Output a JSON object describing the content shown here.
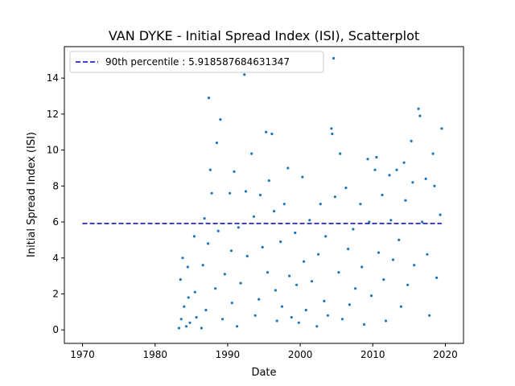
{
  "chart_data": {
    "type": "scatter",
    "title": "VAN DYKE - Initial Spread Index (ISI), Scatterplot",
    "xlabel": "Date",
    "ylabel": "Initial Spread Index (ISI)",
    "xlim": [
      1967.5,
      2022.5
    ],
    "ylim": [
      -0.75,
      15.75
    ],
    "xticks": [
      "1970",
      "1980",
      "1990",
      "2000",
      "2010",
      "2020"
    ],
    "xtick_values": [
      1970,
      1980,
      1990,
      2000,
      2010,
      2020
    ],
    "yticks": [
      "0",
      "2",
      "4",
      "6",
      "8",
      "10",
      "12",
      "14"
    ],
    "ytick_values": [
      0,
      2,
      4,
      6,
      8,
      10,
      12,
      14
    ],
    "grid": false,
    "legend": {
      "position": "top-left",
      "entries": [
        "90th percentile : 5.918587684631347"
      ]
    },
    "reference_line": {
      "name": "90th percentile : 5.918587684631347",
      "y": 5.918587684631347,
      "x_range": [
        1970,
        2019.5
      ],
      "color": "#0000cc",
      "style": "dashed"
    },
    "series": [
      {
        "name": "ISI",
        "color": "#1f77b4",
        "x": [
          1983.3,
          1983.5,
          1983.6,
          1983.8,
          1984.0,
          1984.3,
          1984.5,
          1984.6,
          1984.8,
          1985.4,
          1985.5,
          1985.7,
          1986.4,
          1986.6,
          1986.8,
          1987.0,
          1987.3,
          1987.4,
          1987.6,
          1987.8,
          1988.3,
          1988.5,
          1988.7,
          1989.0,
          1989.3,
          1989.6,
          1990.3,
          1990.5,
          1990.6,
          1990.9,
          1991.3,
          1991.5,
          1991.8,
          1992.3,
          1992.5,
          1992.7,
          1993.3,
          1993.6,
          1993.8,
          1994.3,
          1994.5,
          1994.8,
          1995.3,
          1995.5,
          1995.7,
          1996.1,
          1996.4,
          1996.6,
          1996.8,
          1997.3,
          1997.5,
          1997.8,
          1998.3,
          1998.5,
          1998.8,
          1999.3,
          1999.5,
          1999.8,
          2000.3,
          2000.5,
          2000.8,
          2001.3,
          2001.6,
          2002.3,
          2002.5,
          2002.8,
          2003.3,
          2003.5,
          2003.8,
          2004.3,
          2004.4,
          2004.6,
          2004.8,
          2005.3,
          2005.5,
          2005.8,
          2006.3,
          2006.6,
          2006.8,
          2007.3,
          2007.6,
          2008.3,
          2008.5,
          2008.8,
          2009.3,
          2009.5,
          2009.8,
          2010.3,
          2010.5,
          2010.8,
          2011.3,
          2011.5,
          2011.8,
          2012.3,
          2012.5,
          2012.8,
          2013.3,
          2013.6,
          2013.9,
          2014.3,
          2014.5,
          2014.8,
          2015.3,
          2015.5,
          2015.7,
          2016.3,
          2016.5,
          2016.8,
          2017.3,
          2017.5,
          2017.8,
          2018.3,
          2018.5,
          2018.8,
          2019.3,
          2019.5
        ],
        "y": [
          0.1,
          2.8,
          0.6,
          4.0,
          1.3,
          0.2,
          3.5,
          1.8,
          0.4,
          5.2,
          2.1,
          0.7,
          0.1,
          3.6,
          6.2,
          1.1,
          4.8,
          12.9,
          8.9,
          7.6,
          2.3,
          10.4,
          5.5,
          11.7,
          0.6,
          3.1,
          7.6,
          4.4,
          1.5,
          8.8,
          0.2,
          5.7,
          2.6,
          14.2,
          7.7,
          4.1,
          9.8,
          6.3,
          0.8,
          1.7,
          7.5,
          4.6,
          11.0,
          3.2,
          8.3,
          10.9,
          6.6,
          2.2,
          0.5,
          4.9,
          1.3,
          7.0,
          9.0,
          3.0,
          0.7,
          5.4,
          2.5,
          0.4,
          8.5,
          3.8,
          1.1,
          6.1,
          2.7,
          0.2,
          4.2,
          7.0,
          1.6,
          5.2,
          0.8,
          11.2,
          10.9,
          15.1,
          7.4,
          3.2,
          9.8,
          0.6,
          7.9,
          4.5,
          1.4,
          5.6,
          2.3,
          7.0,
          3.5,
          0.3,
          9.5,
          6.0,
          1.9,
          8.9,
          9.6,
          4.3,
          7.5,
          2.8,
          0.5,
          8.6,
          6.1,
          3.9,
          8.9,
          5.0,
          1.3,
          9.3,
          7.2,
          2.5,
          10.5,
          8.2,
          3.6,
          12.3,
          11.9,
          6.0,
          8.4,
          4.2,
          0.8,
          9.8,
          8.0,
          2.9,
          6.4,
          11.2
        ]
      }
    ]
  }
}
